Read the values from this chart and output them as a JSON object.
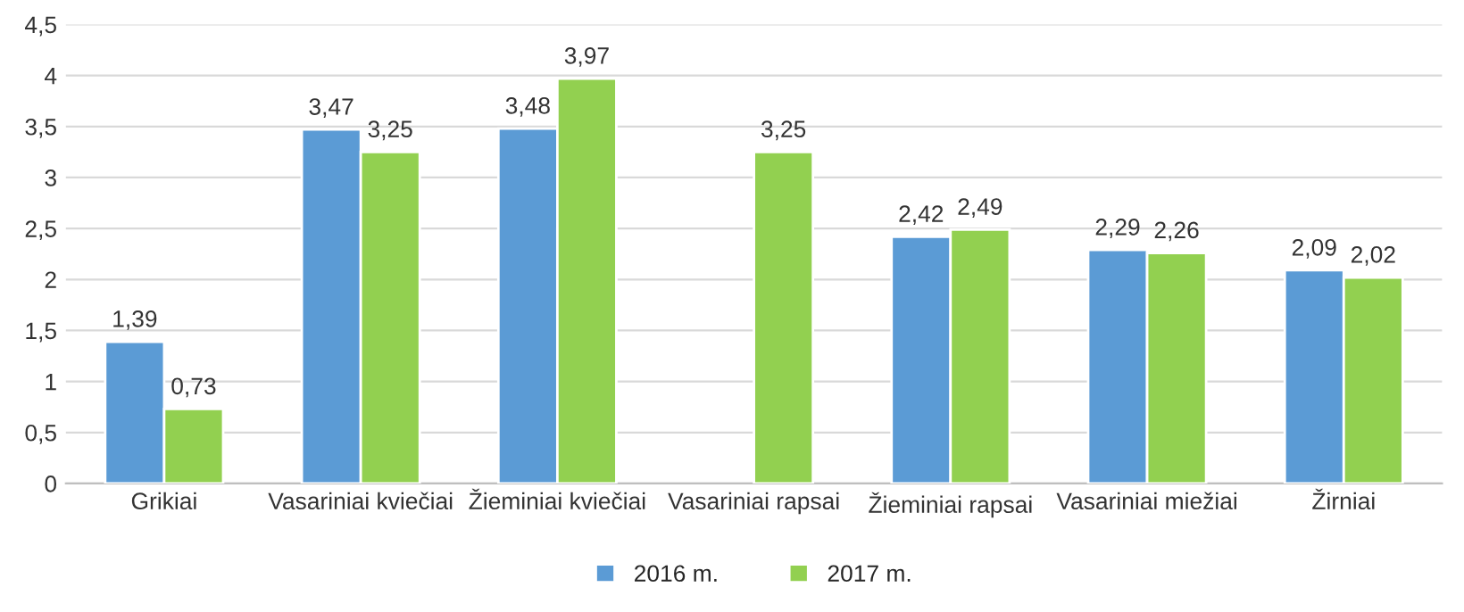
{
  "chart_data": {
    "type": "bar",
    "categories": [
      "Grikiai",
      "Vasariniai kviečiai",
      "Žieminiai kviečiai",
      "Vasariniai rapsai",
      "Žieminiai rapsai",
      "Vasariniai miežiai",
      "Žirniai"
    ],
    "series": [
      {
        "name": "2016 m.",
        "color": "#5b9bd5",
        "values": [
          1.39,
          3.47,
          3.48,
          null,
          2.42,
          2.29,
          2.09
        ],
        "value_labels": [
          "1,39",
          "3,47",
          "3,48",
          null,
          "2,42",
          "2,29",
          "2,09"
        ]
      },
      {
        "name": "2017 m.",
        "color": "#92d050",
        "values": [
          0.73,
          3.25,
          3.97,
          3.25,
          2.49,
          2.26,
          2.02
        ],
        "value_labels": [
          "0,73",
          "3,25",
          "3,97",
          "3,25",
          "2,49",
          "2,26",
          "2,02"
        ]
      }
    ],
    "ylim": [
      0,
      4.5
    ],
    "yticks": [
      0,
      {
        "value": 0.5,
        "label": "0,5"
      },
      1,
      {
        "value": 1.5,
        "label": "1,5"
      },
      2,
      {
        "value": 2.5,
        "label": "2,5"
      },
      3,
      {
        "value": 3.5,
        "label": "3,5"
      },
      4,
      {
        "value": 4.5,
        "label": "4,5"
      }
    ],
    "grid": "y",
    "legend": "bottom"
  }
}
